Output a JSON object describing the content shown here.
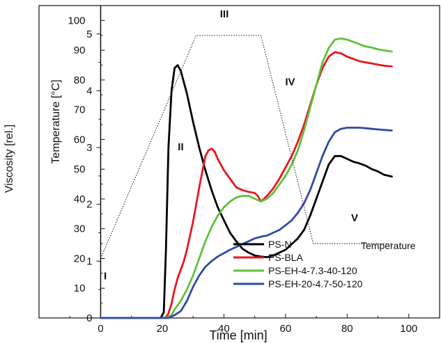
{
  "chart_data": {
    "type": "line",
    "xlabel": "Time [min]",
    "ylabel_left": "Viscosity [rel.]",
    "ylabel_right": "Temperature [°C]",
    "xlim": [
      -20,
      110
    ],
    "ylim_left": [
      0,
      5.5
    ],
    "ylim_right": [
      0,
      105
    ],
    "x_ticks": [
      0,
      20,
      40,
      60,
      80,
      100
    ],
    "y_left_ticks": [
      0,
      1,
      2,
      3,
      4,
      5
    ],
    "y_right_ticks": [
      0,
      10,
      20,
      30,
      40,
      50,
      60,
      70,
      80,
      90,
      100
    ],
    "grid": false,
    "legend_position": "bottom-right",
    "series": [
      {
        "name": "PS-N",
        "color": "#000000",
        "x": [
          0,
          19.5,
          20.5,
          21.2,
          22,
          23,
          24,
          25,
          26,
          27,
          28,
          29,
          30,
          32,
          34,
          36,
          38,
          40,
          42,
          44,
          46,
          48,
          50,
          52,
          54,
          56,
          58,
          60,
          62,
          64,
          66,
          68,
          70,
          72,
          74,
          76,
          78,
          80,
          82,
          84,
          86,
          88,
          90,
          92,
          94.5
        ],
        "y": [
          0,
          0,
          0.1,
          1.2,
          3.0,
          4.0,
          4.4,
          4.45,
          4.35,
          4.15,
          3.95,
          3.7,
          3.45,
          3.0,
          2.6,
          2.25,
          1.95,
          1.72,
          1.5,
          1.35,
          1.22,
          1.15,
          1.1,
          1.08,
          1.07,
          1.1,
          1.15,
          1.2,
          1.3,
          1.4,
          1.55,
          1.8,
          2.1,
          2.4,
          2.7,
          2.85,
          2.85,
          2.8,
          2.75,
          2.72,
          2.68,
          2.62,
          2.58,
          2.52,
          2.49
        ]
      },
      {
        "name": "PS-BLA",
        "color": "#e8161d",
        "x": [
          0,
          21,
          22,
          23,
          24,
          25,
          26,
          27,
          28,
          30,
          32,
          34,
          35,
          36,
          37,
          38,
          40,
          42,
          44,
          46,
          48,
          50,
          51,
          52,
          53,
          54,
          56,
          58,
          60,
          62,
          64,
          66,
          68,
          70,
          72,
          74,
          76,
          78,
          80,
          82,
          84,
          86,
          88,
          90,
          92,
          94.5
        ],
        "y": [
          0,
          0,
          0.08,
          0.25,
          0.5,
          0.7,
          0.85,
          1.0,
          1.2,
          1.7,
          2.3,
          2.85,
          2.95,
          2.98,
          2.93,
          2.8,
          2.6,
          2.45,
          2.3,
          2.25,
          2.22,
          2.2,
          2.15,
          2.05,
          2.1,
          2.15,
          2.28,
          2.45,
          2.65,
          2.85,
          3.1,
          3.4,
          3.75,
          4.1,
          4.4,
          4.6,
          4.68,
          4.66,
          4.6,
          4.56,
          4.52,
          4.5,
          4.48,
          4.46,
          4.44,
          4.43
        ]
      },
      {
        "name": "PS-EH-4-7.3-40-120",
        "color": "#5fc13b",
        "x": [
          0,
          21,
          23,
          24,
          26,
          28,
          30,
          32,
          34,
          36,
          38,
          40,
          42,
          44,
          46,
          48,
          50,
          52,
          54,
          56,
          58,
          60,
          62,
          64,
          66,
          68,
          70,
          72,
          74,
          76,
          78,
          80,
          82,
          84,
          86,
          88,
          90,
          92,
          94.5
        ],
        "y": [
          0,
          0,
          0.05,
          0.15,
          0.3,
          0.5,
          0.75,
          1.05,
          1.35,
          1.6,
          1.8,
          1.95,
          2.05,
          2.12,
          2.15,
          2.15,
          2.1,
          2.05,
          2.1,
          2.2,
          2.35,
          2.5,
          2.7,
          2.95,
          3.3,
          3.7,
          4.1,
          4.5,
          4.75,
          4.9,
          4.92,
          4.9,
          4.86,
          4.82,
          4.78,
          4.76,
          4.73,
          4.71,
          4.69
        ]
      },
      {
        "name": "PS-EH-20-4.7-50-120",
        "color": "#2f4ba5",
        "x": [
          0,
          22,
          24,
          26,
          28,
          30,
          32,
          34,
          36,
          38,
          40,
          42,
          44,
          46,
          48,
          50,
          52,
          54,
          56,
          58,
          60,
          62,
          64,
          66,
          68,
          70,
          72,
          74,
          76,
          78,
          80,
          82,
          84,
          86,
          88,
          90,
          92,
          94.5
        ],
        "y": [
          0,
          0,
          0.05,
          0.12,
          0.3,
          0.55,
          0.75,
          0.9,
          1.0,
          1.08,
          1.14,
          1.2,
          1.25,
          1.3,
          1.35,
          1.4,
          1.43,
          1.45,
          1.5,
          1.55,
          1.63,
          1.72,
          1.85,
          2.02,
          2.25,
          2.55,
          2.85,
          3.1,
          3.27,
          3.33,
          3.35,
          3.35,
          3.35,
          3.34,
          3.33,
          3.32,
          3.31,
          3.3
        ]
      }
    ],
    "temperature_profile": {
      "name": "Temperature",
      "color": "#333333",
      "style": "dotted",
      "x": [
        0,
        31,
        52,
        69,
        94.5
      ],
      "y": [
        20,
        95,
        95,
        25,
        25
      ]
    },
    "annotations": [
      "I",
      "II",
      "III",
      "IV",
      "V"
    ],
    "temperature_label": "Temperature"
  }
}
